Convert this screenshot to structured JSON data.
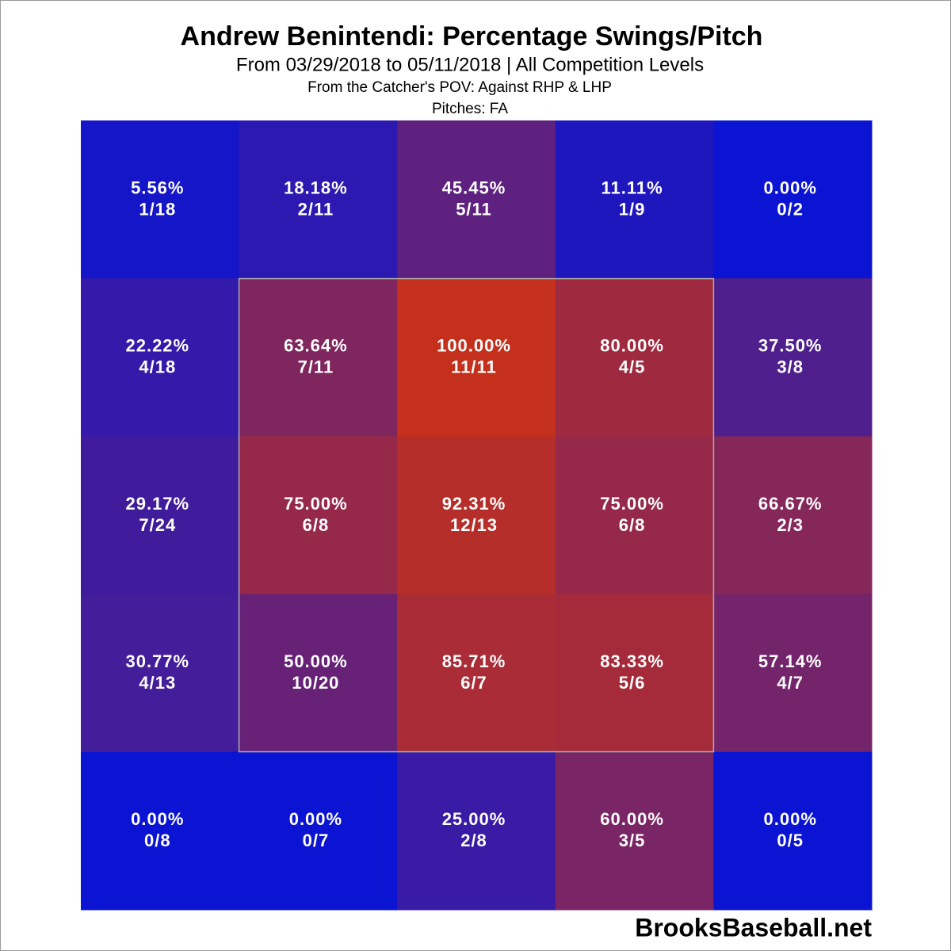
{
  "chart_data": {
    "type": "heatmap",
    "title": "Andrew Benintendi: Percentage Swings/Pitch",
    "subtitle": "From 03/29/2018 to 05/11/2018 | All Competition Levels",
    "notes": [
      "From the Catcher's POV:   Against RHP & LHP",
      "Pitches:  FA"
    ],
    "watermark": "BrooksBaseball.net",
    "color_scale": [
      "#0a14d2",
      "#c4301c"
    ],
    "values": [
      [
        5.56,
        18.18,
        45.45,
        11.11,
        0.0
      ],
      [
        22.22,
        63.64,
        100.0,
        80.0,
        37.5
      ],
      [
        29.17,
        75.0,
        92.31,
        75.0,
        66.67
      ],
      [
        30.77,
        50.0,
        85.71,
        83.33,
        57.14
      ],
      [
        0.0,
        0.0,
        25.0,
        60.0,
        0.0
      ]
    ],
    "value_labels": [
      [
        "5.56%",
        "18.18%",
        "45.45%",
        "11.11%",
        "0.00%"
      ],
      [
        "22.22%",
        "63.64%",
        "100.00%",
        "80.00%",
        "37.50%"
      ],
      [
        "29.17%",
        "75.00%",
        "92.31%",
        "75.00%",
        "66.67%"
      ],
      [
        "30.77%",
        "50.00%",
        "85.71%",
        "83.33%",
        "57.14%"
      ],
      [
        "0.00%",
        "0.00%",
        "25.00%",
        "60.00%",
        "0.00%"
      ]
    ],
    "counts": [
      [
        "1/18",
        "2/11",
        "5/11",
        "1/9",
        "0/2"
      ],
      [
        "4/18",
        "7/11",
        "11/11",
        "4/5",
        "3/8"
      ],
      [
        "7/24",
        "6/8",
        "12/13",
        "6/8",
        "2/3"
      ],
      [
        "4/13",
        "10/20",
        "6/7",
        "5/6",
        "4/7"
      ],
      [
        "0/8",
        "0/7",
        "2/8",
        "3/5",
        "0/5"
      ]
    ]
  }
}
